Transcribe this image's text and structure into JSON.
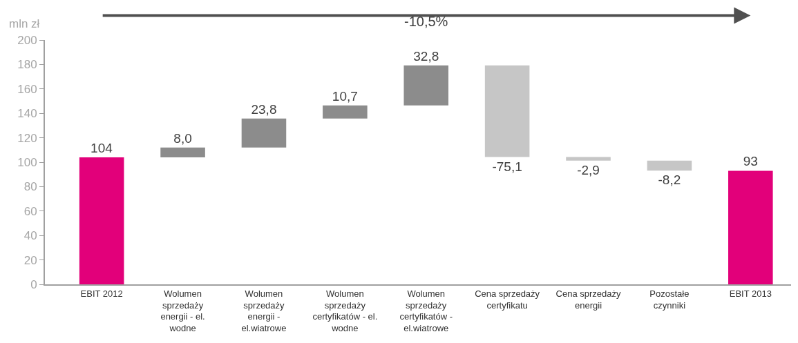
{
  "chart_data": {
    "type": "bar",
    "ylabel": "mln zł",
    "categories": [
      "EBIT 2012",
      "Wolumen\nsprzedaży\nenergii - el.\nwodne",
      "Wolumen\nsprzedaży\nenergii -\nel.wiatrowe",
      "Wolumen\nsprzedaży\ncertyfikatów - el.\nwodne",
      "Wolumen\nsprzedaży\ncertyfikatów -\nel.wiatrowe",
      "Cena sprzedaży\ncertyfikatu",
      "Cena sprzedaży\nenergii",
      "Pozostałe\nczynniki",
      "EBIT 2013"
    ],
    "values": [
      104,
      8.0,
      23.8,
      10.7,
      32.8,
      -75.1,
      -2.9,
      -8.2,
      93
    ],
    "base": [
      0,
      104,
      112,
      135.8,
      146.5,
      179.3,
      104.2,
      101.3,
      0
    ],
    "colors": [
      "#e2007a",
      "#8c8c8c",
      "#8c8c8c",
      "#8c8c8c",
      "#8c8c8c",
      "#c6c6c6",
      "#c6c6c6",
      "#c6c6c6",
      "#e2007a"
    ],
    "value_labels": [
      "104",
      "8,0",
      "23,8",
      "10,7",
      "32,8",
      "-75,1",
      "-2,9",
      "-8,2",
      "93"
    ],
    "ylim": [
      0,
      200
    ],
    "yticks": [
      0,
      20,
      40,
      60,
      80,
      100,
      120,
      140,
      160,
      180,
      200
    ],
    "annotations": [
      "-10,5%"
    ]
  }
}
